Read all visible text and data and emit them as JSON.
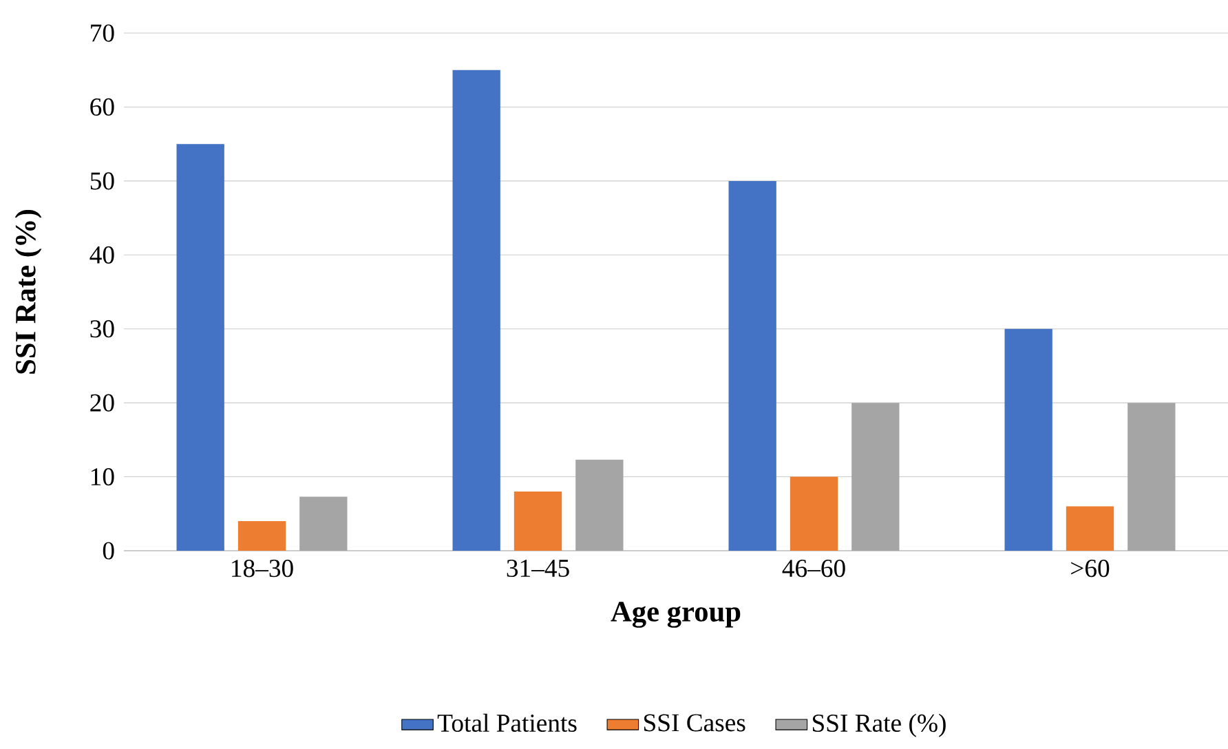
{
  "chart_data": {
    "type": "bar",
    "xlabel": "Age group",
    "ylabel": "SSI Rate (%)",
    "categories": [
      "18–30",
      "31–45",
      "46–60",
      ">60"
    ],
    "series": [
      {
        "name": "Total Patients",
        "color": "#4472c4",
        "values": [
          55,
          65,
          50,
          30
        ]
      },
      {
        "name": "SSI Cases",
        "color": "#ed7d31",
        "values": [
          4,
          8,
          10,
          6
        ]
      },
      {
        "name": "SSI Rate (%)",
        "color": "#a5a5a5",
        "values": [
          7.3,
          12.3,
          20,
          20
        ]
      }
    ],
    "ylim": [
      0,
      70
    ],
    "yticks": [
      0,
      10,
      20,
      30,
      40,
      50,
      60,
      70
    ],
    "grid": "y",
    "legend": "bottom"
  }
}
